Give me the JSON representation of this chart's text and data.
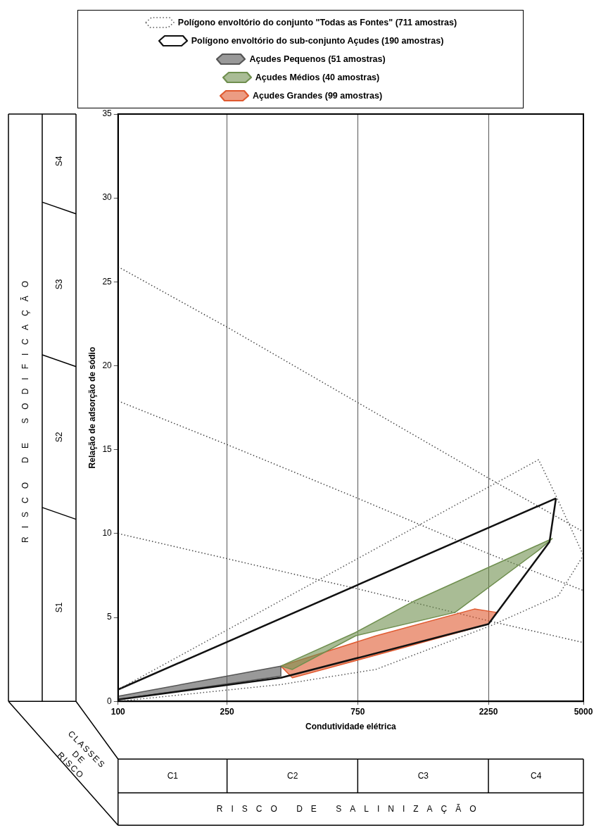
{
  "chart_data": {
    "type": "line",
    "xlabel": "Condutividade elétrica",
    "ylabel": "Relação de adsorção de sódio",
    "log": "x",
    "xlim": [
      100,
      5000
    ],
    "xticks": [
      100,
      250,
      750,
      2250,
      5000
    ],
    "ylim": [
      0,
      35
    ],
    "yticks": [
      0,
      5,
      10,
      15,
      20,
      25,
      30,
      35
    ],
    "grid": "x",
    "legend": "top",
    "marker": "none",
    "series": [
      {
        "name": "Polígono envoltório do conjunto \"Todas as Fontes\" (711 amostras)",
        "line_style": "dotted",
        "color": "#555555",
        "x": [
          100,
          3430,
          3930,
          5000
        ],
        "values": [
          0.7,
          14.4,
          12.4,
          8.7
        ]
      },
      {
        "line_style": "dotted",
        "color": "#555555",
        "x": [
          100,
          393,
          873,
          2290,
          4050,
          5000
        ],
        "values": [
          0.0,
          1.0,
          1.9,
          4.5,
          6.3,
          8.7
        ]
      },
      {
        "name": "Polígono envoltório do sub-conjunto Açudes (190 amostras)",
        "line_style": "solid",
        "color": "#111111",
        "x": [
          100,
          3970
        ],
        "values": [
          0.7,
          12.1
        ]
      },
      {
        "line_style": "solid",
        "color": "#111111",
        "x": [
          100,
          393,
          2250,
          3760,
          3970
        ],
        "values": [
          0.1,
          1.4,
          4.6,
          9.5,
          12.1
        ]
      },
      {
        "name": "Açudes Pequenos (51 amostras)",
        "type": "area",
        "line_style": "solid",
        "color": "#555555",
        "x": [
          100,
          393,
          393,
          100,
          100
        ],
        "values": [
          0.3,
          2.1,
          1.5,
          0.1,
          0.3
        ]
      },
      {
        "name": "Açudes Médios (40 amostras)",
        "type": "area",
        "line_style": "solid",
        "color": "#6f8f4f",
        "x": [
          393,
          736,
          1213,
          3850,
          3430,
          1700,
          736,
          433,
          393
        ],
        "values": [
          2.1,
          4.1,
          6.0,
          9.7,
          9.0,
          5.3,
          3.9,
          1.9,
          2.1
        ]
      },
      {
        "name": "Açudes Grandes (99 amostras)",
        "type": "area",
        "line_style": "solid",
        "color": "#e05a30",
        "x": [
          393,
          873,
          2000,
          2410,
          2250,
          1100,
          433,
          393
        ],
        "values": [
          2.1,
          3.9,
          5.5,
          5.3,
          4.6,
          3.2,
          1.4,
          2.1
        ]
      },
      {
        "line_style": "dotted",
        "color": "#444444",
        "x": [
          100,
          250,
          750,
          2250,
          5000
        ],
        "values": [
          25.9,
          22.3,
          17.8,
          13.3,
          10.1
        ]
      },
      {
        "line_style": "dotted",
        "color": "#444444",
        "x": [
          100,
          250,
          750,
          2250,
          5000
        ],
        "values": [
          17.9,
          15.3,
          12.1,
          8.8,
          6.6
        ]
      },
      {
        "line_style": "dotted",
        "color": "#444444",
        "x": [
          100,
          250,
          750,
          2250,
          5000
        ],
        "values": [
          10.0,
          8.5,
          6.7,
          4.8,
          3.5
        ]
      }
    ],
    "annotations": [
      "RISCO DE SODIFICAÇÃO",
      "S1",
      "S2",
      "S3",
      "S4",
      "CLASSES DE RISCO",
      "C1",
      "C2",
      "C3",
      "C4",
      "RISCO DE SALINIZAÇÃO"
    ]
  }
}
